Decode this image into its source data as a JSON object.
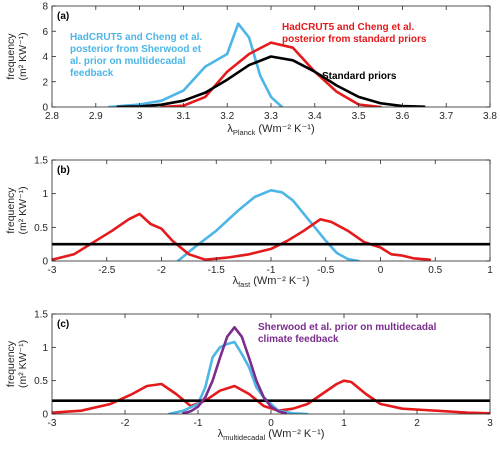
{
  "colors": {
    "blue": "#4db6e6",
    "red": "#e41a1c",
    "black": "#000000",
    "purple": "#7b2d8e"
  },
  "chart_data": [
    {
      "type": "line",
      "panel_label": "(a)",
      "xlabel_main": "λ",
      "xlabel_sub": "Planck",
      "xlabel_units": "(Wm⁻² K⁻¹)",
      "ylabel_line1": "frequency",
      "ylabel_line2": "(m² KW⁻¹)",
      "xlim": [
        2.8,
        3.8
      ],
      "ylim": [
        0,
        8
      ],
      "xticks": [
        2.8,
        2.9,
        3.0,
        3.1,
        3.2,
        3.3,
        3.4,
        3.5,
        3.6,
        3.7,
        3.8
      ],
      "xtick_labels": [
        "2.8",
        "2.9",
        "3",
        "3.1",
        "3.2",
        "3.3",
        "3.4",
        "3.5",
        "3.6",
        "3.7",
        "3.8"
      ],
      "yticks": [
        0,
        2,
        4,
        6,
        8
      ],
      "ytick_labels": [
        "0",
        "2",
        "4",
        "6",
        "8"
      ],
      "annotations": [
        {
          "lines": [
            "HadCRUT5 and Cheng et al.",
            "posterior from Sherwood et",
            "al. prior on multidecadal",
            "feedback"
          ],
          "color": "blue"
        },
        {
          "lines": [
            "HadCRUT5 and Cheng et al.",
            "posterior from standard priors"
          ],
          "color": "red"
        },
        {
          "lines": [
            "Standard priors"
          ],
          "color": "black"
        }
      ],
      "series": [
        {
          "color": "blue",
          "x": [
            2.93,
            3.0,
            3.05,
            3.1,
            3.15,
            3.2,
            3.225,
            3.25,
            3.275,
            3.3,
            3.325
          ],
          "y": [
            0,
            0.2,
            0.5,
            1.3,
            3.2,
            4.2,
            6.6,
            5.5,
            2.5,
            0.8,
            0
          ]
        },
        {
          "color": "red",
          "x": [
            3.05,
            3.1,
            3.15,
            3.2,
            3.25,
            3.3,
            3.35,
            3.4,
            3.45,
            3.5,
            3.55
          ],
          "y": [
            0,
            0.1,
            0.8,
            2.8,
            4.2,
            5.1,
            4.7,
            2.8,
            1.2,
            0.2,
            0
          ]
        },
        {
          "color": "black",
          "x": [
            2.95,
            3.0,
            3.05,
            3.1,
            3.15,
            3.2,
            3.25,
            3.3,
            3.35,
            3.4,
            3.45,
            3.5,
            3.55,
            3.6,
            3.65
          ],
          "y": [
            0.01,
            0.05,
            0.18,
            0.5,
            1.14,
            2.16,
            3.32,
            4.0,
            3.7,
            2.8,
            1.7,
            0.8,
            0.3,
            0.08,
            0.02
          ]
        }
      ]
    },
    {
      "type": "line",
      "panel_label": "(b)",
      "xlabel_main": "λ",
      "xlabel_sub": "fast",
      "xlabel_units": "(Wm⁻² K⁻¹)",
      "ylabel_line1": "frequency",
      "ylabel_line2": "(m² KW⁻¹)",
      "xlim": [
        -3,
        1
      ],
      "ylim": [
        0,
        1.5
      ],
      "xticks": [
        -3,
        -2.5,
        -2,
        -1.5,
        -1,
        -0.5,
        0,
        0.5,
        1
      ],
      "xtick_labels": [
        "-3",
        "-2.5",
        "-2",
        "-1.5",
        "-1",
        "-0.5",
        "0",
        "0.5",
        "1"
      ],
      "yticks": [
        0,
        0.5,
        1,
        1.5
      ],
      "ytick_labels": [
        "0",
        "0.5",
        "1",
        "1.5"
      ],
      "annotations": [],
      "series": [
        {
          "color": "blue",
          "x": [
            -1.85,
            -1.7,
            -1.5,
            -1.3,
            -1.15,
            -1.0,
            -0.9,
            -0.8,
            -0.7,
            -0.6,
            -0.5,
            -0.4,
            -0.3,
            -0.2
          ],
          "y": [
            0,
            0.2,
            0.45,
            0.75,
            0.95,
            1.05,
            1.02,
            0.9,
            0.7,
            0.5,
            0.3,
            0.12,
            0.03,
            0
          ]
        },
        {
          "color": "red",
          "x": [
            -3.0,
            -2.8,
            -2.6,
            -2.45,
            -2.3,
            -2.2,
            -2.1,
            -2.0,
            -1.9,
            -1.75,
            -1.6,
            -1.4,
            -1.2,
            -1.0,
            -0.85,
            -0.7,
            -0.55,
            -0.45,
            -0.3,
            -0.15,
            0.0,
            0.1,
            0.2,
            0.3,
            0.45
          ],
          "y": [
            0.02,
            0.1,
            0.3,
            0.45,
            0.62,
            0.7,
            0.55,
            0.48,
            0.3,
            0.1,
            0.02,
            0.05,
            0.1,
            0.18,
            0.3,
            0.45,
            0.62,
            0.58,
            0.45,
            0.28,
            0.2,
            0.1,
            0.08,
            0.04,
            0.02
          ]
        },
        {
          "color": "black",
          "x": [
            -3,
            1
          ],
          "y": [
            0.25,
            0.25
          ]
        }
      ]
    },
    {
      "type": "line",
      "panel_label": "(c)",
      "xlabel_main": "λ",
      "xlabel_sub": "multidecadal",
      "xlabel_units": "(Wm⁻² K⁻¹)",
      "ylabel_line1": "frequency",
      "ylabel_line2": "(m² KW⁻¹)",
      "xlim": [
        -3,
        3
      ],
      "ylim": [
        0,
        1.5
      ],
      "xticks": [
        -3,
        -2,
        -1,
        0,
        1,
        2,
        3
      ],
      "xtick_labels": [
        "-3",
        "-2",
        "-1",
        "0",
        "1",
        "2",
        "3"
      ],
      "yticks": [
        0,
        0.5,
        1,
        1.5
      ],
      "ytick_labels": [
        "0",
        "0.5",
        "1",
        "1.5"
      ],
      "annotations": [
        {
          "lines": [
            "Sherwood et al. prior on multidecadal",
            "climate feedback"
          ],
          "color": "purple"
        }
      ],
      "series": [
        {
          "color": "red",
          "x": [
            -3.0,
            -2.6,
            -2.2,
            -1.9,
            -1.7,
            -1.5,
            -1.3,
            -1.1,
            -0.9,
            -0.7,
            -0.5,
            -0.3,
            -0.1,
            0.1,
            0.3,
            0.5,
            0.7,
            0.9,
            1.0,
            1.1,
            1.3,
            1.5,
            1.8,
            2.1,
            2.4,
            2.7,
            3.0
          ],
          "y": [
            0.02,
            0.05,
            0.15,
            0.3,
            0.42,
            0.45,
            0.3,
            0.12,
            0.2,
            0.35,
            0.42,
            0.3,
            0.12,
            0.05,
            0.08,
            0.15,
            0.3,
            0.45,
            0.5,
            0.48,
            0.3,
            0.15,
            0.08,
            0.06,
            0.04,
            0.02,
            0.01
          ]
        },
        {
          "color": "blue",
          "x": [
            -1.4,
            -1.2,
            -1.0,
            -0.9,
            -0.8,
            -0.7,
            -0.6,
            -0.5,
            -0.4,
            -0.3,
            -0.2,
            -0.1,
            0.0,
            0.1,
            0.3,
            0.5
          ],
          "y": [
            0,
            0.05,
            0.15,
            0.4,
            0.85,
            1.0,
            1.05,
            1.08,
            0.9,
            0.7,
            0.4,
            0.25,
            0.15,
            0.05,
            0.01,
            0
          ]
        },
        {
          "color": "black",
          "x": [
            -3,
            3
          ],
          "y": [
            0.2,
            0.2
          ]
        },
        {
          "color": "purple",
          "x": [
            -1.2,
            -1.1,
            -1.0,
            -0.9,
            -0.8,
            -0.7,
            -0.6,
            -0.5,
            -0.4,
            -0.3,
            -0.2,
            -0.1,
            0.0,
            0.1,
            0.2
          ],
          "y": [
            0.01,
            0.04,
            0.11,
            0.25,
            0.5,
            0.84,
            1.16,
            1.3,
            1.16,
            0.84,
            0.5,
            0.25,
            0.11,
            0.04,
            0.01
          ]
        }
      ]
    }
  ]
}
